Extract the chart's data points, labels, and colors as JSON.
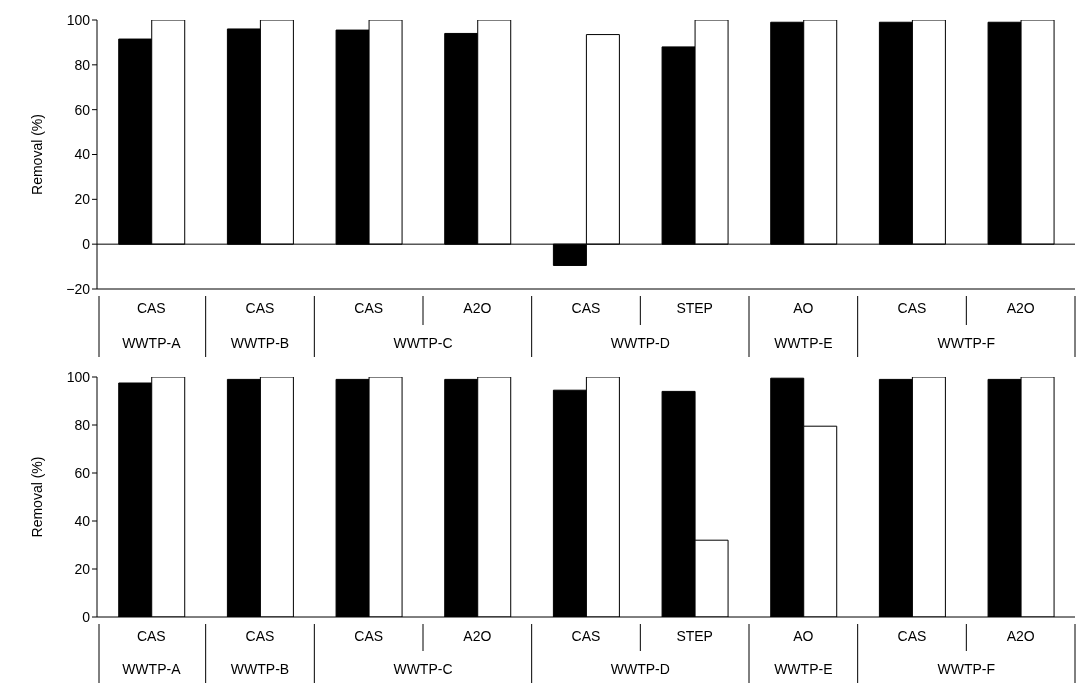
{
  "chart_data": [
    {
      "type": "bar",
      "ylabel": "Removal (%)",
      "categories": [
        "CAS",
        "CAS",
        "CAS",
        "A2O",
        "CAS",
        "STEP",
        "AO",
        "CAS",
        "A2O"
      ],
      "series": [
        {
          "color": "#000000",
          "values": [
            91.5,
            96,
            95.5,
            94,
            -9.5,
            88,
            99,
            99,
            99
          ]
        },
        {
          "color": "#ffffff",
          "values": [
            100,
            100,
            100,
            100,
            93.5,
            100,
            100,
            100,
            100
          ]
        }
      ],
      "ylim": [
        -20,
        100
      ],
      "yticks": [
        -20,
        0,
        20,
        40,
        60,
        80,
        100
      ],
      "grid": false,
      "legend": false,
      "ref_lines": [
        {
          "axis": "y",
          "value": 0,
          "color": "#000000"
        }
      ],
      "annotations": [
        "WWTP-A",
        "WWTP-B",
        "WWTP-C",
        "WWTP-D",
        "WWTP-E",
        "WWTP-F"
      ]
    },
    {
      "type": "bar",
      "ylabel": "Removal (%)",
      "categories": [
        "CAS",
        "CAS",
        "CAS",
        "A2O",
        "CAS",
        "STEP",
        "AO",
        "CAS",
        "A2O"
      ],
      "series": [
        {
          "color": "#000000",
          "values": [
            97.5,
            99,
            99,
            99,
            94.5,
            94,
            99.5,
            99,
            99
          ]
        },
        {
          "color": "#ffffff",
          "values": [
            100,
            100,
            100,
            100,
            100,
            32,
            79.5,
            100,
            100
          ]
        }
      ],
      "ylim": [
        0,
        100
      ],
      "yticks": [
        0,
        20,
        40,
        60,
        80,
        100
      ],
      "grid": false,
      "legend": false,
      "annotations": [
        "WWTP-A",
        "WWTP-B",
        "WWTP-C",
        "WWTP-D",
        "WWTP-E",
        "WWTP-F"
      ]
    }
  ]
}
